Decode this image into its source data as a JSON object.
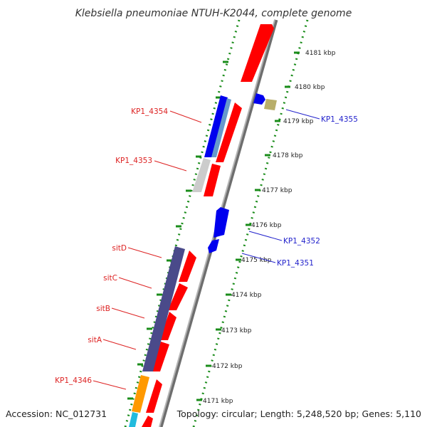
{
  "title": "Klebsiella pneumoniae NTUH-K2044, complete genome",
  "footer": {
    "accession": "Accession: NC_012731",
    "topology": "Topology: circular; Length: 5,248,520 bp; Genes: 5,110"
  },
  "colors": {
    "backbone": "#9a9a9a",
    "tick_dots": "#1a8c1a",
    "forward_strand": "#ff0000",
    "label_red": "#dd2222",
    "label_blue": "#2222cc"
  },
  "ticks": [
    {
      "label": "4181 kbp"
    },
    {
      "label": "4180 kbp"
    },
    {
      "label": "4179 kbp"
    },
    {
      "label": "4178 kbp"
    },
    {
      "label": "4177 kbp"
    },
    {
      "label": "4176 kbp"
    },
    {
      "label": "4175 kbp"
    },
    {
      "label": "4174 kbp"
    },
    {
      "label": "4173 kbp"
    },
    {
      "label": "4172 kbp"
    },
    {
      "label": "4171 kbp"
    }
  ],
  "labeled_genes": [
    {
      "name": "KP1_4354",
      "color": "#dd2222"
    },
    {
      "name": "KP1_4353",
      "color": "#dd2222"
    },
    {
      "name": "sitD",
      "color": "#dd2222"
    },
    {
      "name": "sitC",
      "color": "#dd2222"
    },
    {
      "name": "sitB",
      "color": "#dd2222"
    },
    {
      "name": "sitA",
      "color": "#dd2222"
    },
    {
      "name": "KP1_4346",
      "color": "#dd2222"
    },
    {
      "name": "KP1_4355",
      "color": "#2222cc"
    },
    {
      "name": "KP1_4352",
      "color": "#2222cc"
    },
    {
      "name": "KP1_4351",
      "color": "#2222cc"
    }
  ]
}
